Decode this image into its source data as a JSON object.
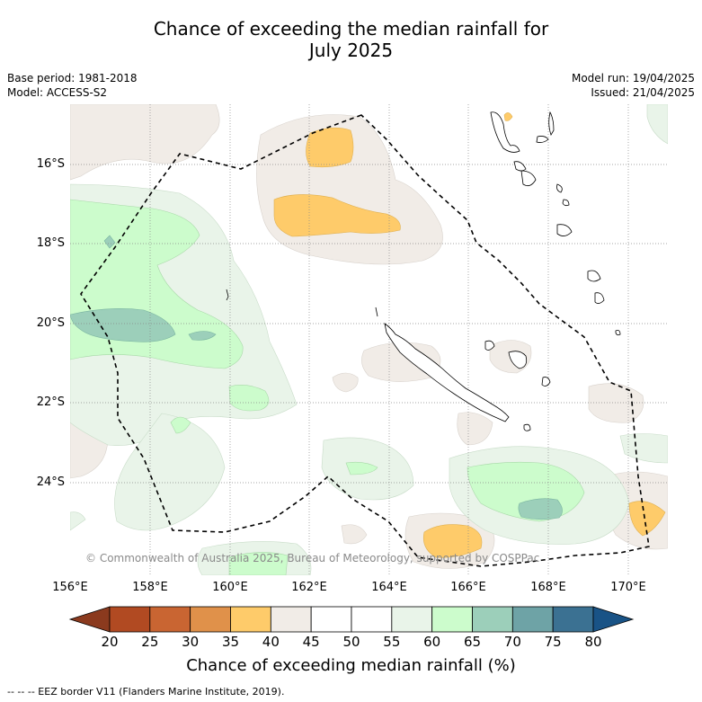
{
  "title_line1": "Chance of exceeding the median rainfall for",
  "title_line2": "July 2025",
  "meta_left": {
    "base_period": "Base period: 1981-2018",
    "model": "Model: ACCESS-S2"
  },
  "meta_right": {
    "model_run": "Model run: 19/04/2025",
    "issued": "Issued: 21/04/2025"
  },
  "map": {
    "lat_labels": [
      "16°S",
      "18°S",
      "20°S",
      "22°S",
      "24°S"
    ],
    "lon_labels": [
      "156°E",
      "158°E",
      "160°E",
      "162°E",
      "164°E",
      "166°E",
      "168°E",
      "170°E"
    ],
    "copyright": "© Commonwealth of Australia 2025, Bureau of Meteorology, supported by COSPPac"
  },
  "colorbar": {
    "ticks": [
      "20",
      "25",
      "30",
      "35",
      "40",
      "45",
      "50",
      "55",
      "60",
      "65",
      "70",
      "75",
      "80"
    ],
    "colors": [
      "#8b3a1e",
      "#b14a22",
      "#c96532",
      "#e0914a",
      "#fecb6a",
      "#f1ece7",
      "#ffffff",
      "#ffffff",
      "#e9f4e9",
      "#ccfccc",
      "#9ccfba",
      "#6ea3a6",
      "#3b7192",
      "#195386"
    ],
    "title": "Chance of exceeding median rainfall (%)"
  },
  "footnote": "-- -- -- EEZ border V11 (Flanders Marine Institute, 2019)."
}
